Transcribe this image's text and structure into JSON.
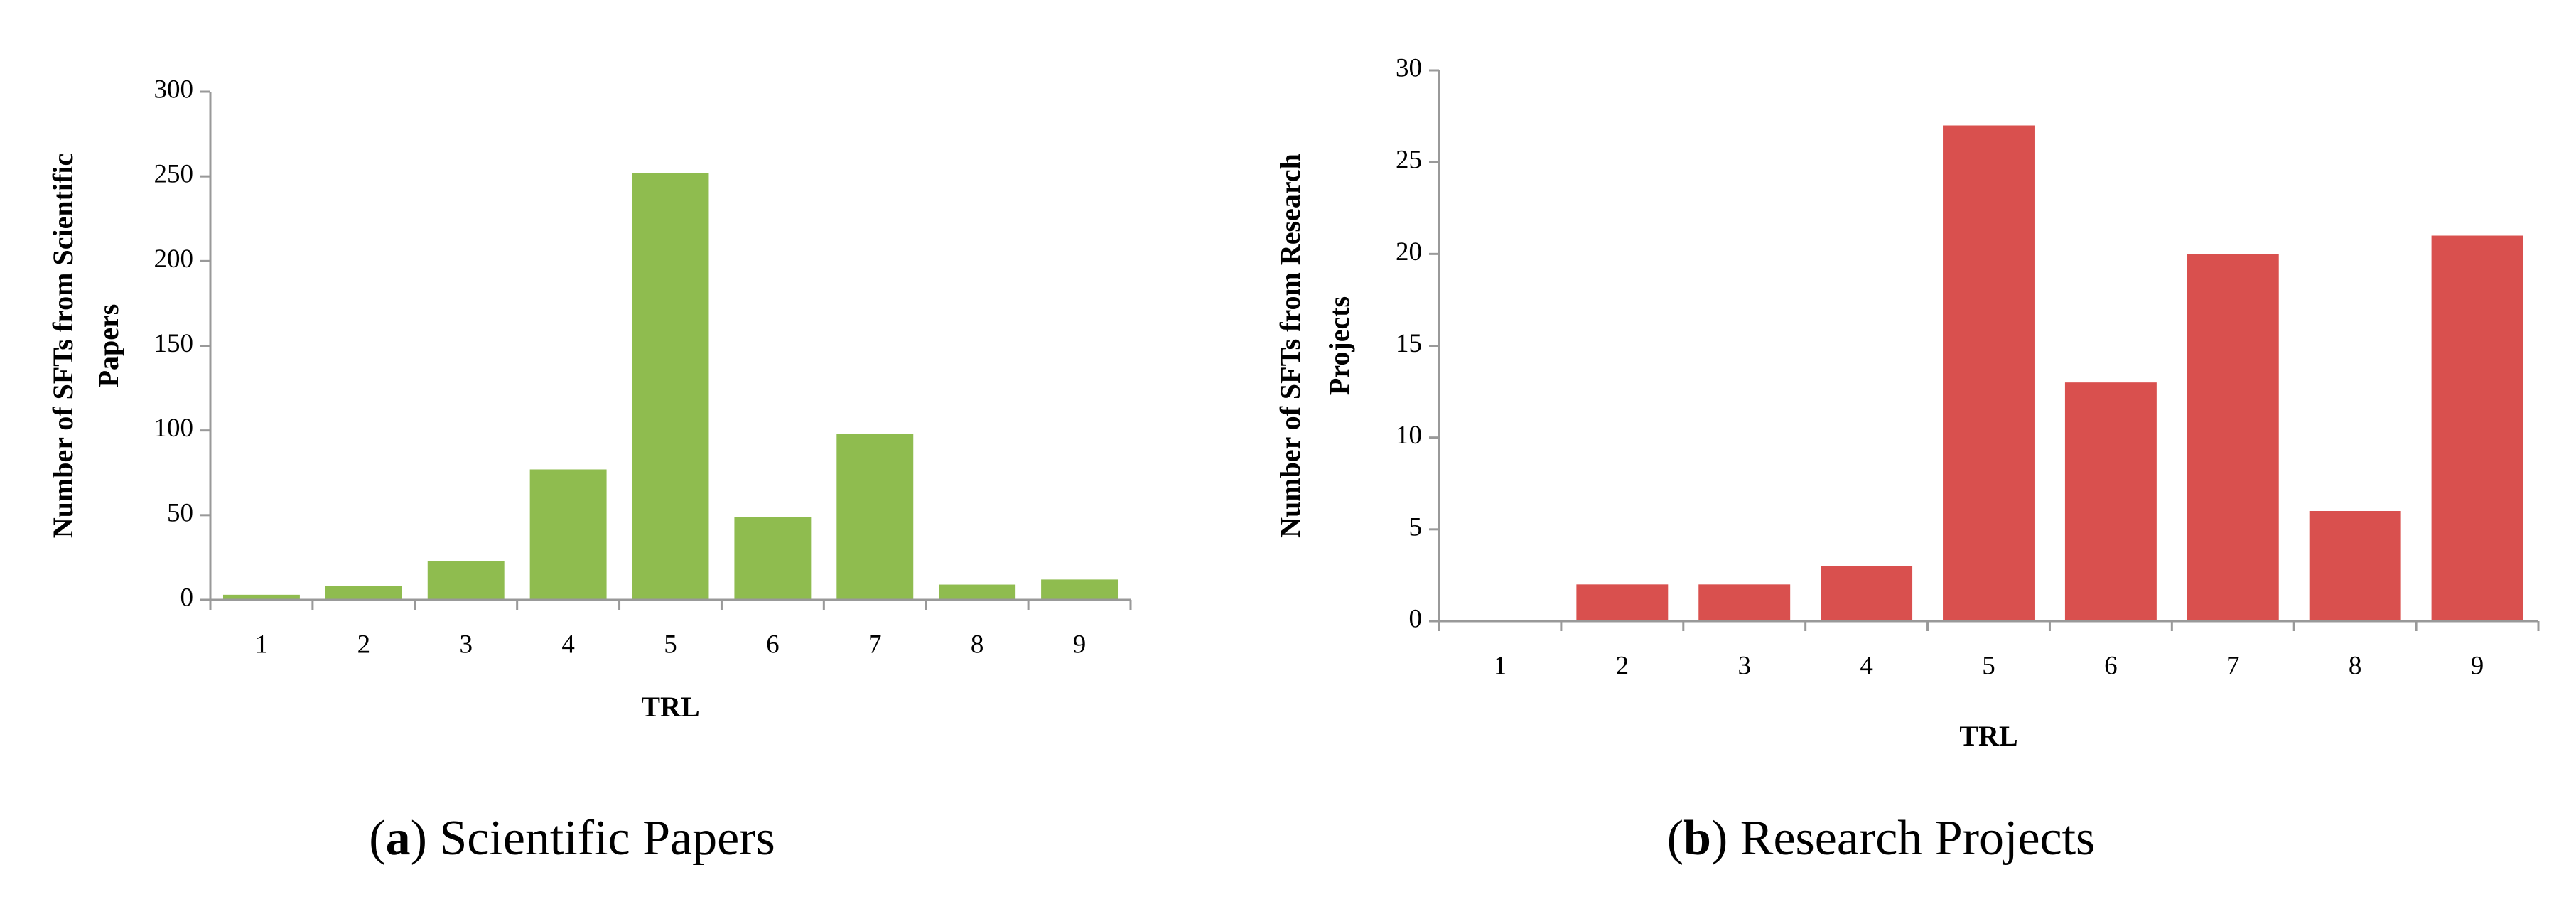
{
  "chart_data": [
    {
      "type": "bar",
      "color": "#8fbc4f",
      "categories": [
        "1",
        "2",
        "3",
        "4",
        "5",
        "6",
        "7",
        "8",
        "9"
      ],
      "values": [
        3,
        8,
        23,
        77,
        252,
        49,
        98,
        9,
        12
      ],
      "ylim": [
        0,
        300
      ],
      "yticks": [
        0,
        50,
        100,
        150,
        200,
        250,
        300
      ],
      "x_label": "TRL",
      "y_label": [
        "Number of SFTs from Scientific",
        "Papers"
      ],
      "caption": [
        "(",
        "a",
        ") Scientific Papers"
      ]
    },
    {
      "type": "bar",
      "color": "#d9504e",
      "categories": [
        "1",
        "2",
        "3",
        "4",
        "5",
        "6",
        "7",
        "8",
        "9"
      ],
      "values": [
        0,
        2,
        2,
        3,
        27,
        13,
        20,
        6,
        21
      ],
      "ylim": [
        0,
        30
      ],
      "yticks": [
        0,
        5,
        10,
        15,
        20,
        25,
        30
      ],
      "x_label": "TRL",
      "y_label": [
        "Number of SFTs from Research",
        "Projects"
      ],
      "caption": [
        "(",
        "b",
        ") Research Projects"
      ]
    }
  ]
}
